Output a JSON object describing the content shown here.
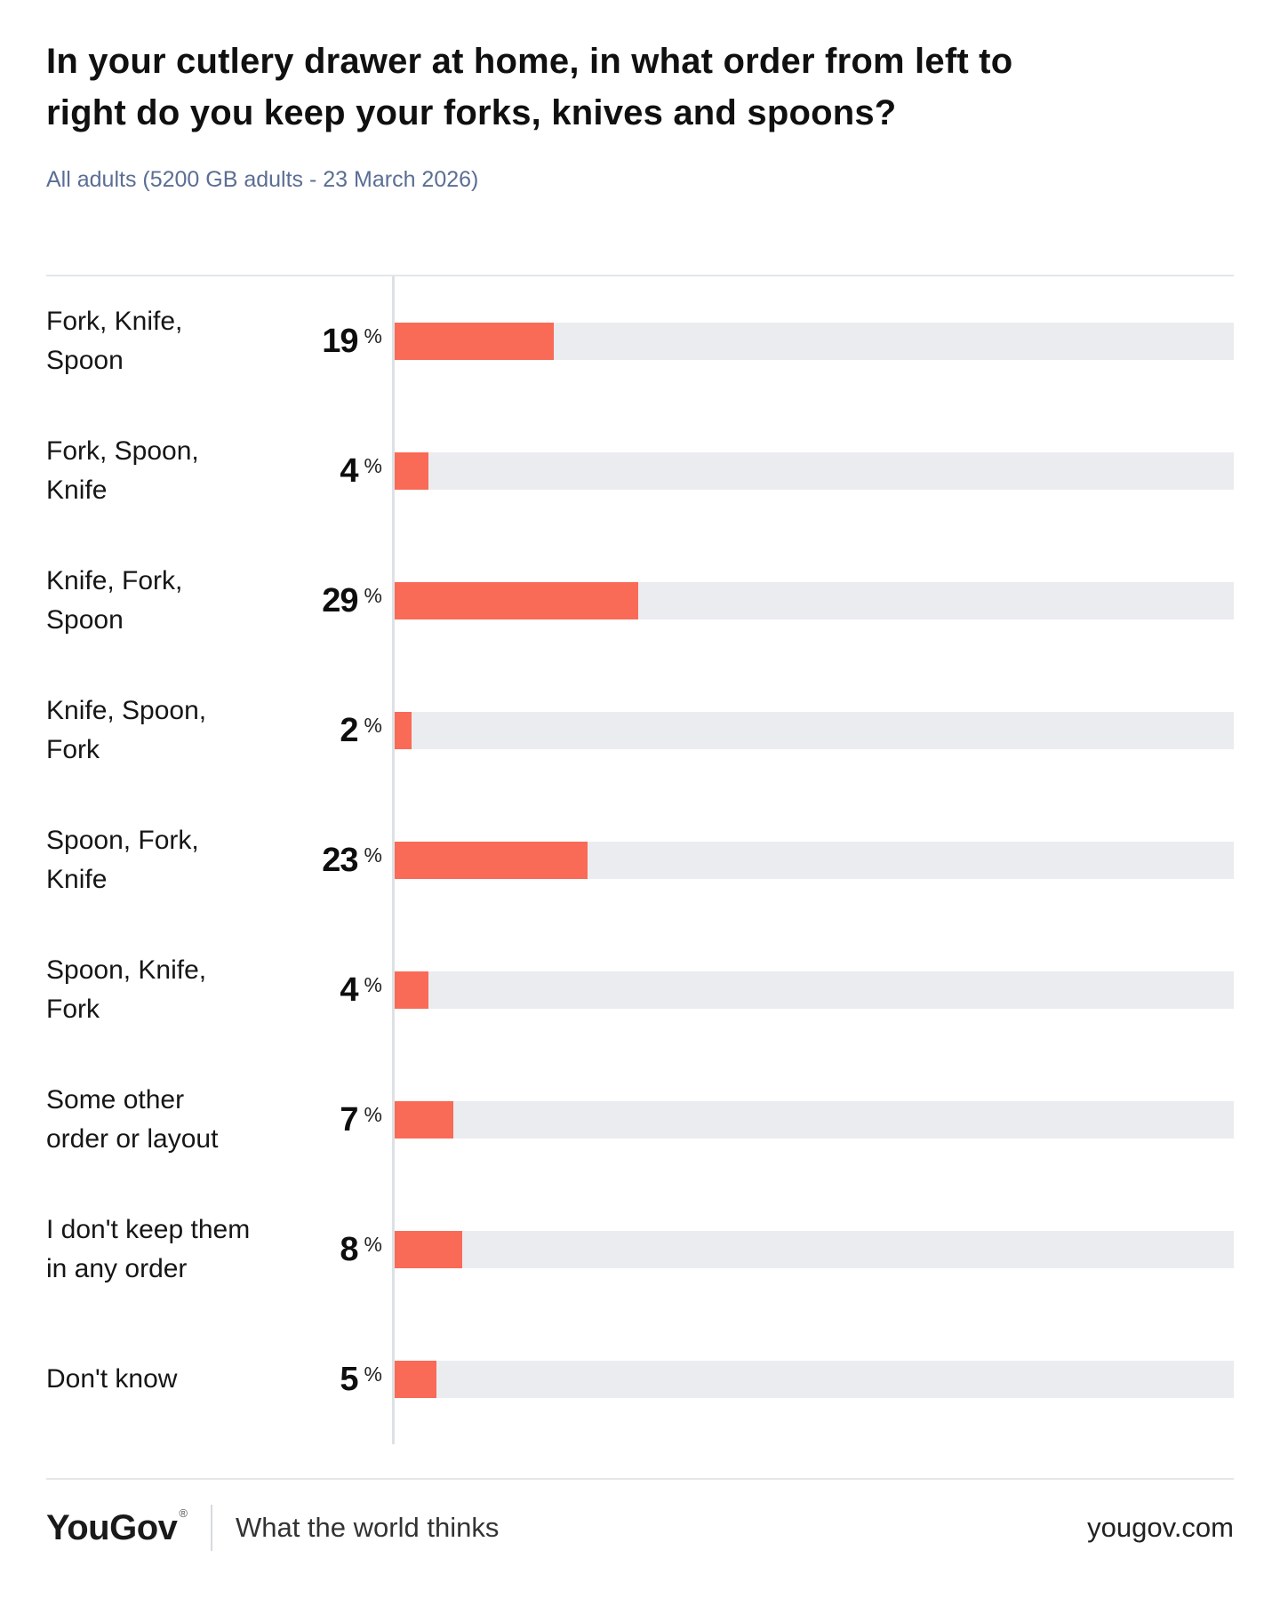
{
  "title": "In your cutlery drawer at home, in what order from left to\nright do you keep your forks, knives and spoons?",
  "subtitle": "All adults (5200 GB adults - 23 March 2026)",
  "percent_symbol": "%",
  "chart_data": {
    "type": "bar",
    "orientation": "horizontal",
    "unit": "%",
    "xlim": [
      0,
      100
    ],
    "grid": false,
    "legend": false,
    "bar_color": "#f96a57",
    "track_color": "#ebecef",
    "categories": [
      "Fork, Knife,\nSpoon",
      "Fork, Spoon,\nKnife",
      "Knife, Fork,\nSpoon",
      "Knife, Spoon,\nFork",
      "Spoon, Fork,\nKnife",
      "Spoon, Knife,\nFork",
      "Some other\norder or layout",
      "I don't keep them\nin any order",
      "Don't know"
    ],
    "values": [
      19,
      4,
      29,
      2,
      23,
      4,
      7,
      8,
      5
    ]
  },
  "footer": {
    "logo": "YouGov",
    "registered_mark": "®",
    "tagline": "What the world thinks",
    "website": "yougov.com"
  }
}
